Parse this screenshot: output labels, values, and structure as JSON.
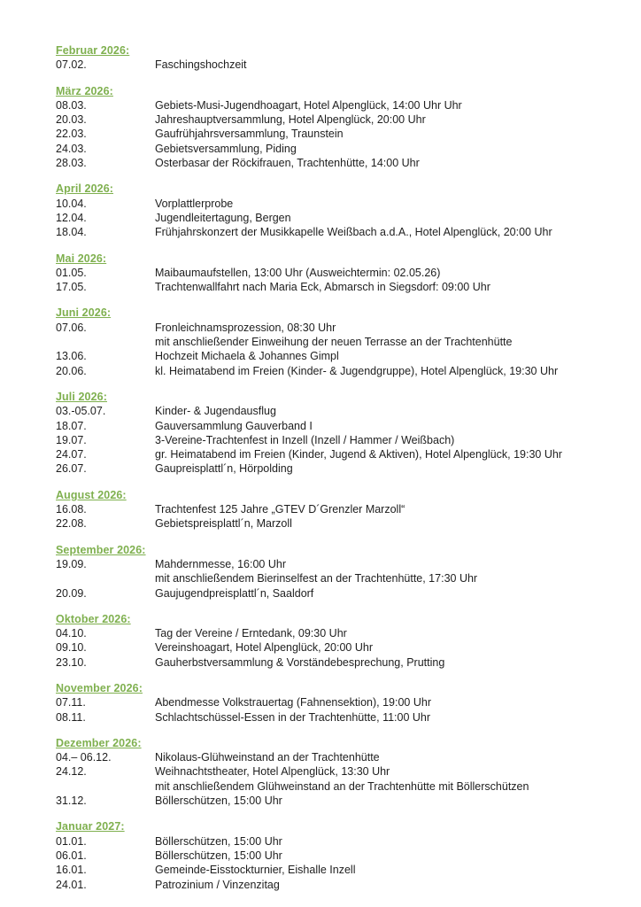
{
  "colors": {
    "month_heading": "#7fb04f",
    "body_text": "#1e1e1e",
    "page_background": "#ffffff"
  },
  "calendar": {
    "sections": [
      {
        "title": "Februar 2026:",
        "rows": [
          {
            "date": "07.02.",
            "text": "Faschingshochzeit"
          }
        ]
      },
      {
        "title": "März 2026:",
        "rows": [
          {
            "date": "08.03.",
            "text": "Gebiets-Musi-Jugendhoagart, Hotel Alpenglück, 14:00 Uhr Uhr"
          },
          {
            "date": "20.03.",
            "text": "Jahreshauptversammlung, Hotel Alpenglück, 20:00 Uhr"
          },
          {
            "date": "22.03.",
            "text": "Gaufrühjahrsversammlung, Traunstein"
          },
          {
            "date": "24.03.",
            "text": "Gebietsversammlung, Piding"
          },
          {
            "date": "28.03.",
            "text": "Osterbasar der Röckifrauen, Trachtenhütte, 14:00 Uhr"
          }
        ]
      },
      {
        "title": "April 2026:",
        "rows": [
          {
            "date": "10.04.",
            "text": "Vorplattlerprobe"
          },
          {
            "date": "12.04.",
            "text": "Jugendleitertagung, Bergen"
          },
          {
            "date": "18.04.",
            "text": "Frühjahrskonzert der Musikkapelle Weißbach a.d.A., Hotel Alpenglück, 20:00 Uhr"
          }
        ]
      },
      {
        "title": "Mai 2026:",
        "rows": [
          {
            "date": "01.05.",
            "text": "Maibaumaufstellen, 13:00 Uhr (Ausweichtermin: 02.05.26)"
          },
          {
            "date": "17.05.",
            "text": "Trachtenwallfahrt nach Maria Eck, Abmarsch in Siegsdorf: 09:00 Uhr"
          }
        ]
      },
      {
        "title": "Juni 2026:",
        "rows": [
          {
            "date": "07.06.",
            "text": "Fronleichnamsprozession, 08:30 Uhr"
          },
          {
            "date": "",
            "text": "mit anschließender Einweihung der neuen Terrasse an der Trachtenhütte"
          },
          {
            "date": "13.06.",
            "text": "Hochzeit Michaela & Johannes Gimpl"
          },
          {
            "date": "20.06.",
            "text": "kl. Heimatabend im Freien (Kinder- & Jugendgruppe), Hotel Alpenglück, 19:30 Uhr"
          }
        ]
      },
      {
        "title": "Juli 2026:",
        "rows": [
          {
            "date": "03.-05.07.",
            "text": "Kinder- & Jugendausflug"
          },
          {
            "date": "18.07.",
            "text": "Gauversammlung Gauverband I"
          },
          {
            "date": "19.07.",
            "text": "3-Vereine-Trachtenfest in Inzell (Inzell / Hammer / Weißbach)"
          },
          {
            "date": "24.07.",
            "text": "gr. Heimatabend im Freien (Kinder, Jugend & Aktiven), Hotel Alpenglück, 19:30 Uhr"
          },
          {
            "date": "26.07.",
            "text": "Gaupreisplattl´n, Hörpolding"
          }
        ]
      },
      {
        "title": "August 2026:",
        "rows": [
          {
            "date": "16.08.",
            "text": "Trachtenfest 125 Jahre „GTEV D´Grenzler Marzoll“"
          },
          {
            "date": "22.08.",
            "text": "Gebietspreisplattl´n, Marzoll"
          }
        ]
      },
      {
        "title": "September 2026:",
        "rows": [
          {
            "date": "19.09.",
            "text": "Mahdernmesse, 16:00 Uhr"
          },
          {
            "date": "",
            "text": "mit anschließendem Bierinselfest an der Trachtenhütte, 17:30 Uhr"
          },
          {
            "date": "20.09.",
            "text": "Gaujugendpreisplattl´n, Saaldorf"
          }
        ]
      },
      {
        "title": "Oktober 2026:",
        "rows": [
          {
            "date": "04.10.",
            "text": "Tag der Vereine / Erntedank, 09:30 Uhr"
          },
          {
            "date": "09.10.",
            "text": "Vereinshoagart, Hotel Alpenglück, 20:00 Uhr"
          },
          {
            "date": "23.10.",
            "text": "Gauherbstversammlung & Vorständebesprechung, Prutting"
          }
        ]
      },
      {
        "title": "November 2026:",
        "rows": [
          {
            "date": "07.11.",
            "text": "Abendmesse Volkstrauertag (Fahnensektion), 19:00 Uhr"
          },
          {
            "date": "08.11.",
            "text": "Schlachtschüssel-Essen in der Trachtenhütte, 11:00 Uhr"
          }
        ]
      },
      {
        "title": "Dezember 2026:",
        "rows": [
          {
            "date": "04.– 06.12.",
            "text": "Nikolaus-Glühweinstand an der Trachtenhütte"
          },
          {
            "date": "24.12.",
            "text": "Weihnachtstheater, Hotel Alpenglück, 13:30 Uhr"
          },
          {
            "date": "",
            "text": "mit anschließendem Glühweinstand an der Trachtenhütte mit Böllerschützen"
          },
          {
            "date": "31.12.",
            "text": "Böllerschützen, 15:00 Uhr"
          }
        ]
      },
      {
        "title": "Januar 2027:",
        "rows": [
          {
            "date": "01.01.",
            "text": "Böllerschützen, 15:00 Uhr"
          },
          {
            "date": "06.01.",
            "text": "Böllerschützen, 15:00 Uhr"
          },
          {
            "date": "16.01.",
            "text": "Gemeinde-Eisstockturnier, Eishalle Inzell"
          },
          {
            "date": "24.01.",
            "text": "Patrozinium / Vinzenzitag"
          }
        ]
      }
    ]
  }
}
